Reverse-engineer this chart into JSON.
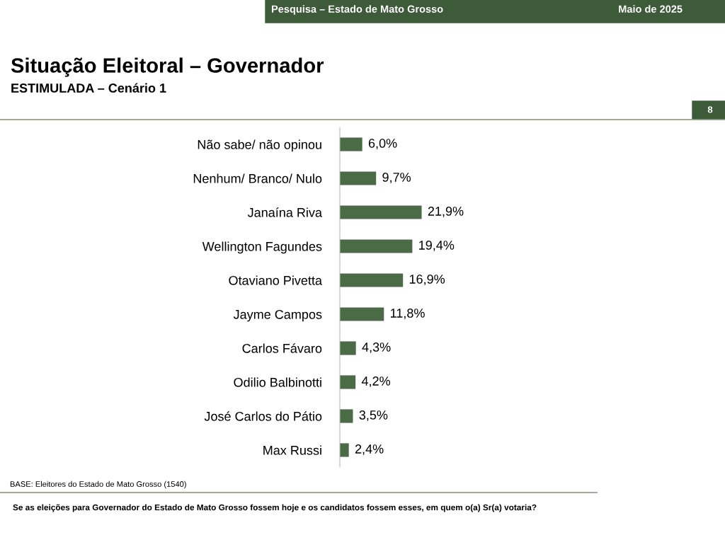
{
  "chart_data": {
    "type": "bar",
    "orientation": "horizontal",
    "title": "Situação Eleitoral – Governador",
    "subtitle": "ESTIMULADA – Cenário 1",
    "categories": [
      "Não sabe/ não opinou",
      "Nenhum/ Branco/ Nulo",
      "Janaína Riva",
      "Wellington Fagundes",
      "Otaviano Pivetta",
      "Jayme Campos",
      "Carlos Fávaro",
      "Odilio Balbinotti",
      "José Carlos do Pátio",
      "Max Russi"
    ],
    "values": [
      6.0,
      9.7,
      21.9,
      19.4,
      16.9,
      11.8,
      4.3,
      4.2,
      3.5,
      2.4
    ],
    "value_labels": [
      "6,0%",
      "9,7%",
      "21,9%",
      "19,4%",
      "16,9%",
      "11,8%",
      "4,3%",
      "4,2%",
      "3,5%",
      "2,4%"
    ],
    "color": "#4a6b45",
    "annotations": [
      "Pesquisa – Estado de Mato Grosso",
      "Maio de 2025",
      "8",
      "BASE: Eleitores do Estado de Mato Grosso (1540)",
      "Se as eleições para Governador do Estado de Mato Grosso fossem hoje e os candidatos fossem esses, em quem o(a) Sr(a) votaria?"
    ],
    "grid": false,
    "legend": false
  }
}
